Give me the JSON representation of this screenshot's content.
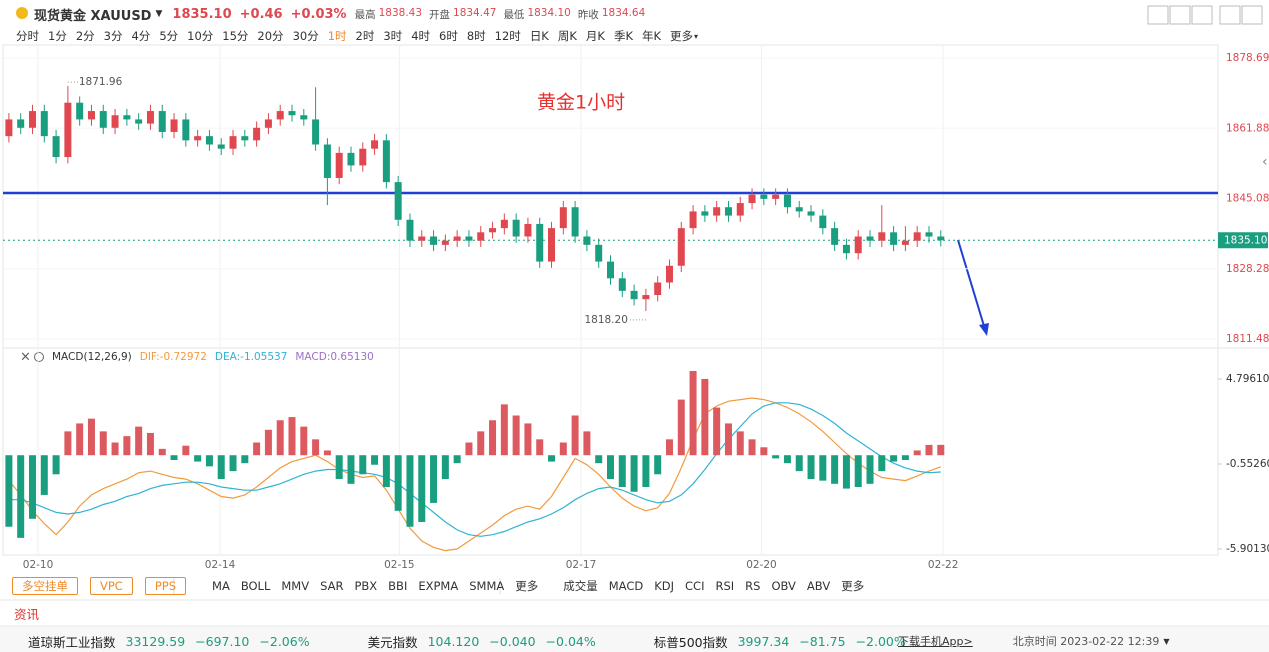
{
  "header": {
    "symbol": "现货黄金 XAUUSD",
    "price": "1835.10",
    "change": "+0.46",
    "change_pct": "+0.03%",
    "stats": [
      {
        "label": "最高",
        "value": "1838.43"
      },
      {
        "label": "开盘",
        "value": "1834.47"
      },
      {
        "label": "最低",
        "value": "1834.10"
      },
      {
        "label": "昨收",
        "value": "1834.64"
      }
    ]
  },
  "timeframes": {
    "items": [
      "分时",
      "1分",
      "2分",
      "3分",
      "4分",
      "5分",
      "10分",
      "15分",
      "20分",
      "30分",
      "1时",
      "2时",
      "3时",
      "4时",
      "6时",
      "8时",
      "12时",
      "日K",
      "周K",
      "月K",
      "季K",
      "年K",
      "更多"
    ],
    "active": 10
  },
  "chart_data": [
    {
      "type": "candlestick",
      "title": "黄金1小时",
      "up_color": "#e0474f",
      "down_color": "#1a9e80",
      "xlim": [
        -0.5,
        102.5
      ],
      "ylim": [
        1809.33,
        1881.8
      ],
      "yticks": [
        1878.69,
        1861.88,
        1845.08,
        1828.28,
        1811.48
      ],
      "xticks": [
        {
          "value": 2.47,
          "label": "02-10"
        },
        {
          "value": 17.9,
          "label": "02-14"
        },
        {
          "value": 33.1,
          "label": "02-15"
        },
        {
          "value": 48.5,
          "label": "02-17"
        },
        {
          "value": 63.8,
          "label": "02-20"
        },
        {
          "value": 79.2,
          "label": "02-22"
        }
      ],
      "grid": true,
      "max_label": "1871.96",
      "min_label": "1818.20",
      "last_price": {
        "value": 1835.1,
        "label": "1835.10"
      },
      "hline": 1846.4,
      "hline_color": "#1f3fd6",
      "open": [
        1860,
        1864,
        1862,
        1866,
        1860,
        1855,
        1868,
        1864,
        1866,
        1862,
        1865,
        1864,
        1863,
        1866,
        1861,
        1864,
        1859,
        1860,
        1858,
        1857,
        1860,
        1859,
        1862,
        1864,
        1866,
        1865,
        1864,
        1858,
        1850,
        1856,
        1853,
        1857,
        1859,
        1849,
        1840,
        1835,
        1836,
        1834,
        1835,
        1836,
        1835,
        1837,
        1838,
        1840,
        1836,
        1839,
        1830,
        1838,
        1843,
        1836,
        1834,
        1830,
        1826,
        1823,
        1821,
        1822,
        1825,
        1829,
        1838,
        1842,
        1841,
        1843,
        1841,
        1844,
        1846,
        1845,
        1846,
        1843,
        1842,
        1841,
        1838,
        1834,
        1832,
        1836,
        1835,
        1837,
        1834,
        1835,
        1837,
        1836
      ],
      "high": [
        1865.5,
        1865.5,
        1867.5,
        1867.5,
        1861.5,
        1871.96,
        1869.5,
        1867.5,
        1867.5,
        1866.5,
        1866.5,
        1865.5,
        1867.5,
        1867.5,
        1865.5,
        1865.5,
        1861.5,
        1861.5,
        1859.5,
        1861.5,
        1861.5,
        1863.5,
        1865.5,
        1867.5,
        1867.5,
        1866.5,
        1871.7,
        1859.5,
        1857.5,
        1857.5,
        1858.5,
        1860.5,
        1860.5,
        1850.5,
        1841.5,
        1837.5,
        1837.5,
        1836.5,
        1837.5,
        1837.5,
        1838.5,
        1839.5,
        1841.5,
        1841.5,
        1840.5,
        1840.5,
        1839.5,
        1844.5,
        1844.5,
        1837.5,
        1835.5,
        1831.5,
        1827.5,
        1824.5,
        1823.5,
        1826.5,
        1830.5,
        1839.5,
        1843.5,
        1843.5,
        1844.5,
        1844.5,
        1845.5,
        1847.5,
        1847.5,
        1847.5,
        1847.5,
        1844.5,
        1843.5,
        1842.5,
        1839.5,
        1835.5,
        1837.5,
        1837.5,
        1843.5,
        1838.5,
        1838.5,
        1838.5,
        1838.5,
        1837.5
      ],
      "low": [
        1858.5,
        1860.5,
        1860.5,
        1858.5,
        1853.5,
        1853.5,
        1862.5,
        1862.5,
        1860.5,
        1860.5,
        1862.5,
        1861.5,
        1861.5,
        1859.5,
        1859.5,
        1857.5,
        1857.5,
        1856.5,
        1855.5,
        1855.5,
        1857.5,
        1857.5,
        1860.5,
        1862.5,
        1863.5,
        1862.5,
        1856.5,
        1843.5,
        1848.5,
        1851.5,
        1851.5,
        1855.5,
        1847.5,
        1838.5,
        1833.5,
        1833.5,
        1832.5,
        1832.5,
        1833.5,
        1833.5,
        1833.5,
        1835.5,
        1836.5,
        1834.5,
        1834.5,
        1828.5,
        1828.5,
        1836.5,
        1834.5,
        1832.5,
        1828.5,
        1824.5,
        1821.5,
        1819.5,
        1818.2,
        1820.5,
        1823.5,
        1827.5,
        1836.5,
        1839.5,
        1839.5,
        1839.5,
        1839.5,
        1842.5,
        1843.5,
        1843.5,
        1841.5,
        1840.5,
        1839.5,
        1836.5,
        1832.5,
        1830.5,
        1830.5,
        1833.5,
        1833.5,
        1832.5,
        1832.5,
        1833.5,
        1834.5,
        1833.6
      ],
      "close": [
        1864,
        1862,
        1866,
        1860,
        1855,
        1868,
        1864,
        1866,
        1862,
        1865,
        1864,
        1863,
        1866,
        1861,
        1864,
        1859,
        1860,
        1858,
        1857,
        1860,
        1859,
        1862,
        1864,
        1866,
        1865,
        1864,
        1858,
        1850,
        1856,
        1853,
        1857,
        1859,
        1849,
        1840,
        1835,
        1836,
        1834,
        1835,
        1836,
        1835,
        1837,
        1838,
        1840,
        1836,
        1839,
        1830,
        1838,
        1843,
        1836,
        1834,
        1830,
        1826,
        1823,
        1821,
        1822,
        1825,
        1829,
        1838,
        1842,
        1841,
        1843,
        1841,
        1844,
        1846,
        1845,
        1846,
        1843,
        1842,
        1841,
        1838,
        1834,
        1832,
        1836,
        1835,
        1837,
        1834,
        1835,
        1837,
        1836,
        1835.1
      ]
    },
    {
      "type": "macd",
      "title": "MACD(12,26,9)",
      "xlim": [
        -0.5,
        102.5
      ],
      "ylim": [
        -6.279,
        6.621
      ],
      "yticks": [
        {
          "value": 4.7961,
          "label": "4.79610"
        },
        {
          "value": -0.5526,
          "label": "-0.55260"
        },
        {
          "value": -5.9013,
          "label": "-5.90130"
        }
      ],
      "series": [
        {
          "label": "DIF:-0.72972",
          "kind": "line",
          "color": "#f39a3c",
          "values": [
            -1.6,
            -2.5,
            -3.5,
            -4.3,
            -5.0,
            -4.2,
            -3.2,
            -2.5,
            -2.1,
            -1.8,
            -1.5,
            -1.1,
            -1.0,
            -1.2,
            -1.4,
            -1.5,
            -1.8,
            -2.2,
            -2.6,
            -2.7,
            -2.5,
            -2.0,
            -1.4,
            -0.8,
            -0.4,
            -0.2,
            0.0,
            -0.4,
            -0.9,
            -1.2,
            -1.4,
            -1.3,
            -2.2,
            -3.4,
            -4.6,
            -5.4,
            -5.8,
            -6.0,
            -5.9,
            -5.4,
            -4.9,
            -4.4,
            -3.8,
            -3.4,
            -3.2,
            -3.4,
            -2.6,
            -1.4,
            -0.2,
            -0.6,
            -1.2,
            -2.0,
            -2.7,
            -3.2,
            -3.5,
            -3.3,
            -2.4,
            -0.8,
            1.0,
            2.6,
            3.1,
            3.4,
            3.5,
            3.6,
            3.5,
            3.3,
            3.0,
            2.6,
            2.1,
            1.5,
            0.8,
            0.1,
            -0.5,
            -1.0,
            -1.4,
            -1.5,
            -1.6,
            -1.3,
            -1.0,
            -0.72972
          ]
        },
        {
          "label": "DEA:-1.05537",
          "kind": "line",
          "color": "#2fb4d3",
          "values": [
            -2.8,
            -2.8,
            -3.0,
            -3.3,
            -3.6,
            -3.7,
            -3.6,
            -3.4,
            -3.1,
            -2.9,
            -2.6,
            -2.4,
            -2.1,
            -1.9,
            -1.8,
            -1.7,
            -1.7,
            -1.8,
            -2.0,
            -2.1,
            -2.2,
            -2.2,
            -2.0,
            -1.8,
            -1.5,
            -1.2,
            -1.0,
            -0.9,
            -0.9,
            -1.0,
            -1.1,
            -1.2,
            -1.4,
            -1.8,
            -2.4,
            -3.0,
            -3.6,
            -4.2,
            -4.7,
            -5.0,
            -5.1,
            -5.0,
            -4.8,
            -4.5,
            -4.2,
            -4.0,
            -3.7,
            -3.3,
            -2.8,
            -2.4,
            -2.1,
            -2.0,
            -2.2,
            -2.5,
            -2.8,
            -3.0,
            -2.9,
            -2.5,
            -1.8,
            -0.9,
            0.1,
            1.0,
            1.8,
            2.6,
            3.1,
            3.3,
            3.3,
            3.2,
            2.9,
            2.5,
            2.0,
            1.4,
            0.9,
            0.4,
            -0.1,
            -0.5,
            -0.8,
            -1.0,
            -1.1,
            -1.05537
          ]
        },
        {
          "label": "MACD:0.65130",
          "kind": "bar",
          "color": "#9b6fc7",
          "up_color": "#dc5a5f",
          "down_color": "#1a9e80",
          "values": [
            -4.5,
            -5.2,
            -4.0,
            -2.5,
            -1.2,
            1.5,
            2.0,
            2.3,
            1.5,
            0.8,
            1.2,
            1.8,
            1.4,
            0.4,
            -0.3,
            0.6,
            -0.4,
            -0.7,
            -1.5,
            -1.0,
            -0.5,
            0.8,
            1.6,
            2.2,
            2.4,
            1.8,
            1.0,
            0.3,
            -1.5,
            -1.8,
            -1.2,
            -0.6,
            -2.0,
            -3.5,
            -4.5,
            -4.2,
            -3.0,
            -1.5,
            -0.5,
            0.8,
            1.5,
            2.2,
            3.2,
            2.5,
            2.0,
            1.0,
            -0.4,
            0.8,
            2.5,
            1.5,
            -0.5,
            -1.5,
            -2.0,
            -2.3,
            -2.0,
            -1.2,
            1.0,
            3.5,
            5.3,
            4.8,
            3.0,
            2.0,
            1.5,
            1.0,
            0.5,
            -0.2,
            -0.5,
            -1.0,
            -1.5,
            -1.6,
            -1.8,
            -2.1,
            -2.0,
            -1.8,
            -1.0,
            -0.4,
            -0.3,
            0.3,
            0.65,
            0.6513
          ]
        }
      ]
    }
  ],
  "toolbar": {
    "buttons": [
      "多空挂单",
      "VPC",
      "PPS"
    ],
    "main_indicators": [
      "MA",
      "BOLL",
      "MMV",
      "SAR",
      "PBX",
      "BBI",
      "EXPMA",
      "SMMA",
      "更多"
    ],
    "sub_indicators": [
      "成交量",
      "MACD",
      "KDJ",
      "CCI",
      "RSI",
      "RS",
      "OBV",
      "ABV",
      "更多"
    ]
  },
  "news_tab": "资讯",
  "ticker": [
    {
      "name": "道琼斯工业指数",
      "price": "33129.59",
      "change": "−697.10",
      "change_pct": "−2.06%"
    },
    {
      "name": "美元指数",
      "price": "104.120",
      "change": "−0.040",
      "change_pct": "−0.04%"
    },
    {
      "name": "标普500指数",
      "price": "3997.34",
      "change": "−81.75",
      "change_pct": "−2.00%"
    }
  ],
  "footer": {
    "download": "下载手机App>",
    "time": "北京时间 2023-02-22 12:39"
  }
}
